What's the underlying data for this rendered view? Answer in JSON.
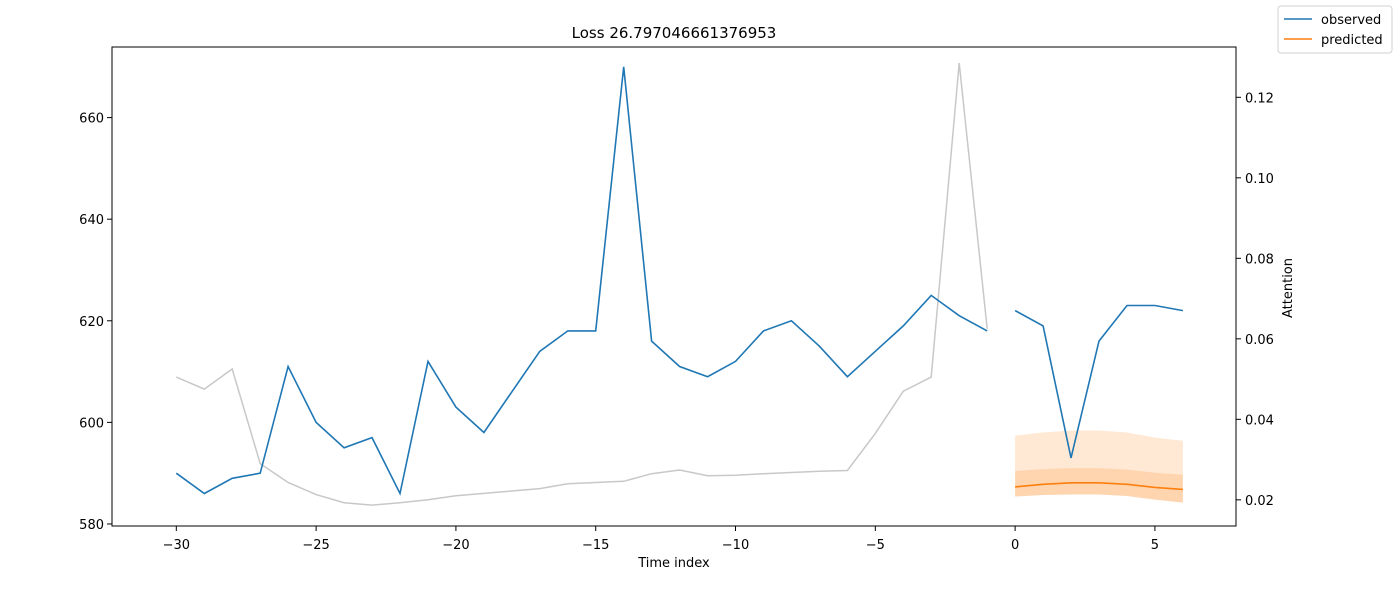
{
  "chart_data": {
    "type": "line",
    "title": "Loss 26.797046661376953",
    "xlabel": "Time index",
    "ylabel": "",
    "y2label": "Attention",
    "xlim": [
      -32.3,
      7.9
    ],
    "ylim": [
      579.6,
      673.9
    ],
    "y2lim": [
      0.0135,
      0.1325
    ],
    "xticks": [
      -30,
      -25,
      -20,
      -15,
      -10,
      -5,
      0,
      5
    ],
    "xtick_labels": [
      "−30",
      "−25",
      "−20",
      "−15",
      "−10",
      "−5",
      "0",
      "5"
    ],
    "yticks": [
      580,
      600,
      620,
      640,
      660
    ],
    "ytick_labels": [
      "580",
      "600",
      "620",
      "640",
      "660"
    ],
    "y2ticks": [
      0.02,
      0.04,
      0.06,
      0.08,
      0.1,
      0.12
    ],
    "y2tick_labels": [
      "0.02",
      "0.04",
      "0.06",
      "0.08",
      "0.10",
      "0.12"
    ],
    "legend_placement": "top-right outside",
    "series": [
      {
        "name": "observed",
        "color": "#1f77b4",
        "segments": [
          {
            "x": [
              -30,
              -29,
              -28,
              -27,
              -26,
              -25,
              -24,
              -23,
              -22,
              -21,
              -20,
              -19,
              -18,
              -17,
              -16,
              -15,
              -14,
              -13,
              -12,
              -11,
              -10,
              -9,
              -8,
              -7,
              -6,
              -5,
              -4,
              -3,
              -2,
              -1
            ],
            "y": [
              590,
              586,
              589,
              590,
              611,
              600,
              595,
              597,
              586,
              612,
              603,
              598,
              606,
              614,
              618,
              618,
              670,
              616,
              611,
              609,
              612,
              618,
              620,
              615,
              609,
              614,
              619,
              625,
              621,
              618
            ]
          },
          {
            "x": [
              0,
              1,
              2,
              3,
              4,
              5,
              6
            ],
            "y": [
              622,
              619,
              593,
              616,
              623,
              623,
              622
            ]
          }
        ]
      },
      {
        "name": "predicted",
        "color": "#ff7f0e",
        "x": [
          0,
          1,
          2,
          3,
          4,
          5,
          6
        ],
        "y": [
          587.3,
          587.8,
          588.1,
          588.1,
          587.8,
          587.2,
          586.8
        ],
        "band_inner_lower": [
          585.4,
          585.7,
          585.8,
          585.8,
          585.5,
          584.8,
          584.2
        ],
        "band_inner_upper": [
          590.4,
          590.8,
          591.0,
          591.0,
          590.7,
          590.1,
          589.7
        ],
        "band_outer_lower": [
          585.4,
          585.7,
          585.8,
          585.8,
          585.5,
          584.8,
          584.2
        ],
        "band_outer_upper": [
          597.4,
          598.0,
          598.4,
          598.4,
          598.0,
          597.0,
          596.4
        ]
      },
      {
        "name": "attention",
        "axis": "right",
        "color": "#c8c8c8",
        "x": [
          -30,
          -29,
          -28,
          -27,
          -26,
          -25,
          -24,
          -23,
          -22,
          -21,
          -20,
          -19,
          -18,
          -17,
          -16,
          -15,
          -14,
          -13,
          -12,
          -11,
          -10,
          -9,
          -8,
          -7,
          -6,
          -5,
          -4,
          -3,
          -2,
          -1
        ],
        "y": [
          0.0505,
          0.0475,
          0.0525,
          0.029,
          0.0243,
          0.0213,
          0.0193,
          0.0187,
          0.0193,
          0.02,
          0.021,
          0.0216,
          0.0222,
          0.0228,
          0.024,
          0.0243,
          0.0246,
          0.0265,
          0.0274,
          0.026,
          0.0261,
          0.0265,
          0.0268,
          0.0271,
          0.0273,
          0.0365,
          0.047,
          0.0505,
          0.1285,
          0.0625
        ]
      }
    ]
  }
}
